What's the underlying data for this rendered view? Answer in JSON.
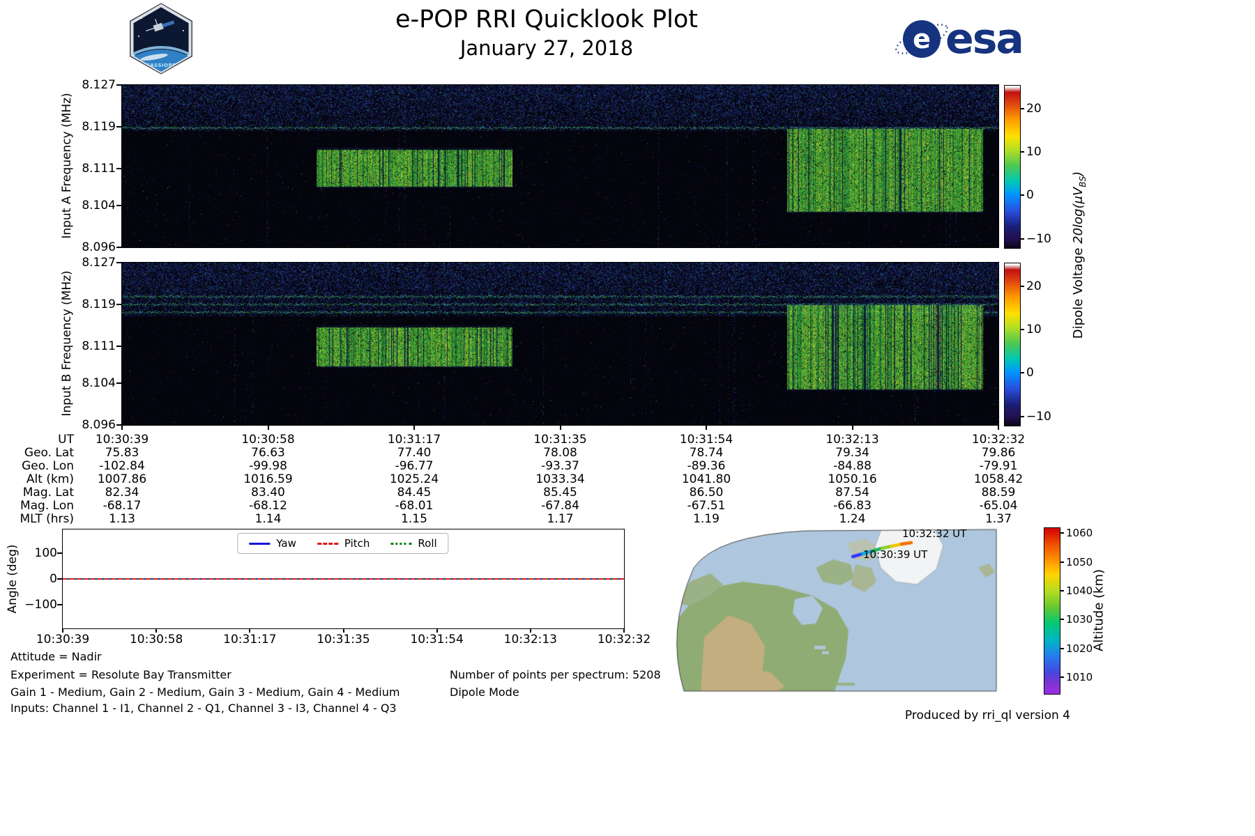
{
  "header": {
    "title": "e-POP RRI Quicklook Plot",
    "date": "January 27, 2018",
    "esa_wordmark": "esa",
    "cassiope_text": "CASSIOPE"
  },
  "dipole_colorbar_label": {
    "prefix": "Dipole Voltage ",
    "math": "20log(μV",
    "sub": "BS",
    "end": ")"
  },
  "altitude_colorbar_label": "Altitude (km)",
  "chart_data": [
    {
      "type": "heatmap",
      "name": "input-a-spectrogram",
      "ylabel": "Input A Frequency (MHz)",
      "ylim": [
        8.096,
        8.127
      ],
      "yticks": [
        "8.127",
        "8.119",
        "8.111",
        "8.104",
        "8.096"
      ],
      "ytick_values": [
        8.127,
        8.119,
        8.111,
        8.104,
        8.096
      ],
      "x_range_ut": [
        "10:30:39",
        "10:32:32"
      ],
      "colorbar_ticks": [
        "20",
        "10",
        "0",
        "−10"
      ],
      "colorbar_tick_values": [
        20,
        10,
        0,
        -10
      ],
      "colorbar_range": [
        -12,
        25.5
      ],
      "features": {
        "noise_band": {
          "f_top": 8.127,
          "f_bottom": 8.1183,
          "bright_lines": [
            8.1188
          ]
        },
        "emission_blocks": [
          {
            "x_start_frac": 0.2227,
            "x_end_frac": 0.4455,
            "f_top": 8.1146,
            "f_bottom": 8.1076
          },
          {
            "x_start_frac": 0.7597,
            "x_end_frac": 0.9824,
            "f_top": 8.1186,
            "f_bottom": 8.1028
          }
        ]
      }
    },
    {
      "type": "heatmap",
      "name": "input-b-spectrogram",
      "ylabel": "Input B Frequency (MHz)",
      "ylim": [
        8.096,
        8.127
      ],
      "yticks": [
        "8.127",
        "8.119",
        "8.111",
        "8.104",
        "8.096"
      ],
      "ytick_values": [
        8.127,
        8.119,
        8.111,
        8.104,
        8.096
      ],
      "x_range_ut": [
        "10:30:39",
        "10:32:32"
      ],
      "colorbar_ticks": [
        "20",
        "10",
        "0",
        "−10"
      ],
      "colorbar_tick_values": [
        20,
        10,
        0,
        -10
      ],
      "colorbar_range": [
        -12,
        25.5
      ],
      "features": {
        "noise_band": {
          "f_top": 8.127,
          "f_bottom": 8.1168,
          "bright_lines": [
            8.1205,
            8.119,
            8.1175
          ]
        },
        "emission_blocks": [
          {
            "x_start_frac": 0.2227,
            "x_end_frac": 0.4455,
            "f_top": 8.1146,
            "f_bottom": 8.1072
          },
          {
            "x_start_frac": 0.7597,
            "x_end_frac": 0.9824,
            "f_top": 8.1188,
            "f_bottom": 8.1028
          }
        ]
      }
    },
    {
      "type": "line",
      "name": "attitude-angles",
      "ylabel": "Angle (deg)",
      "ylim": [
        -190,
        190
      ],
      "yticks": [
        "100",
        "0",
        "−100"
      ],
      "ytick_values": [
        100,
        0,
        -100
      ],
      "xticks": [
        "10:30:39",
        "10:30:58",
        "10:31:17",
        "10:31:35",
        "10:31:54",
        "10:32:13",
        "10:32:32"
      ],
      "legend_position": "top center",
      "series": [
        {
          "name": "Yaw",
          "color": "#1414dd",
          "style": "solid",
          "values": [
            0,
            0,
            0,
            0,
            0,
            0,
            0
          ]
        },
        {
          "name": "Pitch",
          "color": "#e01414",
          "style": "dashed",
          "values": [
            0,
            0,
            0,
            0,
            0,
            0,
            0
          ]
        },
        {
          "name": "Roll",
          "color": "#0a7d0a",
          "style": "dotted",
          "values": [
            0,
            0,
            0,
            0,
            0,
            0,
            0
          ]
        }
      ]
    },
    {
      "type": "map",
      "name": "ground-track-map",
      "track_start_label": "10:30:39 UT",
      "track_end_label": "10:32:32 UT",
      "altitude_ticks": [
        "1060",
        "1050",
        "1040",
        "1030",
        "1020",
        "1010"
      ],
      "altitude_tick_values": [
        1060,
        1050,
        1040,
        1030,
        1020,
        1010
      ],
      "altitude_range": [
        1004.5,
        1062
      ]
    }
  ],
  "ephemeris": {
    "row_labels": [
      "UT",
      "Geo. Lat",
      "Geo. Lon",
      "Alt (km)",
      "Mag. Lat",
      "Mag. Lon",
      "MLT (hrs)"
    ],
    "columns": [
      [
        "10:30:39",
        "75.83",
        "-102.84",
        "1007.86",
        "82.34",
        "-68.17",
        "1.13"
      ],
      [
        "10:30:58",
        "76.63",
        "-99.98",
        "1016.59",
        "83.40",
        "-68.12",
        "1.14"
      ],
      [
        "10:31:17",
        "77.40",
        "-96.77",
        "1025.24",
        "84.45",
        "-68.01",
        "1.15"
      ],
      [
        "10:31:35",
        "78.08",
        "-93.37",
        "1033.34",
        "85.45",
        "-67.84",
        "1.17"
      ],
      [
        "10:31:54",
        "78.74",
        "-89.36",
        "1041.80",
        "86.50",
        "-67.51",
        "1.19"
      ],
      [
        "10:32:13",
        "79.34",
        "-84.88",
        "1050.16",
        "87.54",
        "-66.83",
        "1.24"
      ],
      [
        "10:32:32",
        "79.86",
        "-79.91",
        "1058.42",
        "88.59",
        "-65.04",
        "1.37"
      ]
    ]
  },
  "footnotes": {
    "attitude": "Attitude = Nadir",
    "experiment": "Experiment = Resolute Bay Transmitter",
    "gains": "Gain 1 - Medium, Gain 2 - Medium, Gain 3 - Medium, Gain 4 - Medium",
    "inputs": "Inputs: Channel 1 - I1, Channel 2 - Q1, Channel 3 - I3, Channel 4 - Q3",
    "points_per_spectrum": "Number of points per spectrum: 5208",
    "mode": "Dipole Mode",
    "produced_by": "Produced by rri_ql version 4"
  }
}
